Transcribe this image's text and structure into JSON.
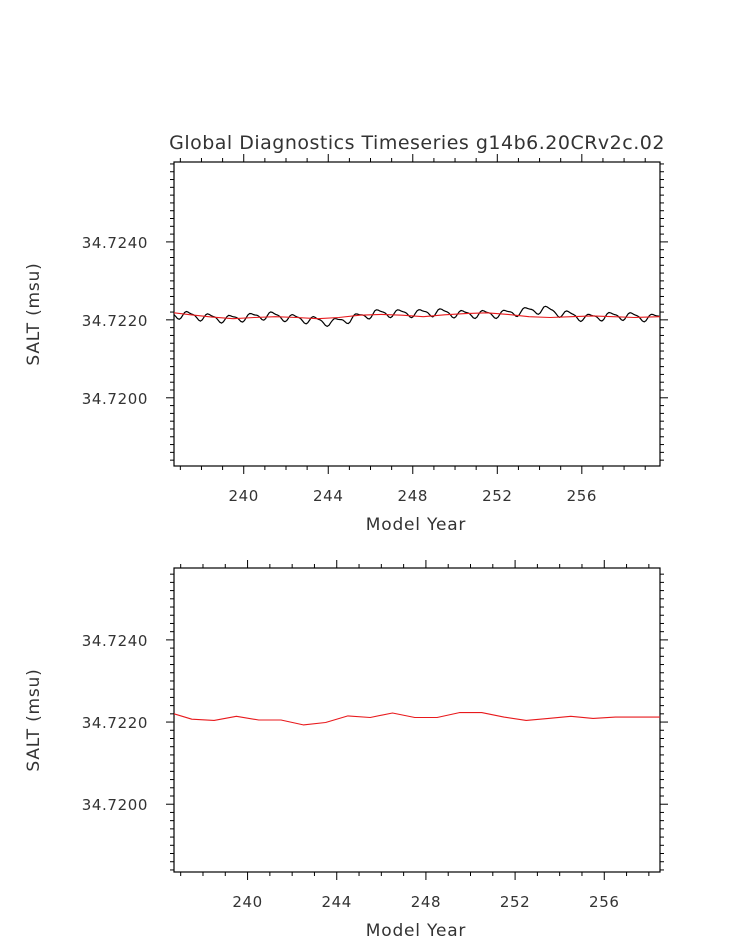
{
  "figure": {
    "title": "Global Diagnostics Timeseries g14b6.20CRv2c.02"
  },
  "chart_data": [
    {
      "type": "line",
      "title": "Global Diagnostics Timeseries g14b6.20CRv2c.02",
      "xlabel": "Model Year",
      "ylabel": "SALT (msu)",
      "xlim": [
        236.7,
        259.7
      ],
      "ylim": [
        34.71825,
        34.72605
      ],
      "x_ticks": [
        240,
        244,
        248,
        252,
        256
      ],
      "x_tick_labels": [
        "240",
        "244",
        "248",
        "252",
        "256"
      ],
      "y_ticks": [
        34.72,
        34.722,
        34.724
      ],
      "y_tick_labels": [
        "34.7200",
        "34.7220",
        "34.7240"
      ],
      "grid": false,
      "series": [
        {
          "color": "#000000",
          "style": "monthly",
          "x_range": [
            236.7,
            259.7
          ],
          "annual_cycle_amplitude": 9e-05,
          "base_values": [
            34.72213,
            34.72207,
            34.72202,
            34.72207,
            34.72212,
            34.72205,
            34.722,
            34.72193,
            34.72205,
            34.72217,
            34.72217,
            34.72217,
            34.7222,
            34.72215,
            34.72215,
            34.72215,
            34.72222,
            34.72227,
            34.72215,
            34.72205,
            34.7221,
            34.7221,
            34.72205,
            34.7221
          ]
        },
        {
          "color": "#e8191c",
          "style": "annual",
          "x": [
            236.7,
            237.5,
            238.5,
            239.5,
            240.5,
            241.5,
            242.5,
            243.5,
            244.5,
            245.5,
            246.5,
            247.5,
            248.5,
            249.5,
            250.5,
            251.5,
            252.5,
            253.5,
            254.5,
            255.5,
            256.5,
            257.5,
            258.5,
            259.7
          ],
          "y": [
            34.72218,
            34.72213,
            34.72207,
            34.72203,
            34.72206,
            34.72208,
            34.72206,
            34.72203,
            34.72206,
            34.72212,
            34.72214,
            34.72212,
            34.72208,
            34.72213,
            34.72216,
            34.72218,
            34.72214,
            34.72208,
            34.72206,
            34.72208,
            34.7221,
            34.72208,
            34.72206,
            34.72208
          ]
        }
      ]
    },
    {
      "type": "line",
      "xlabel": "Model Year",
      "ylabel": "SALT (msu)",
      "xlim": [
        236.7,
        258.5
      ],
      "ylim": [
        34.71835,
        34.72575
      ],
      "x_ticks": [
        240,
        244,
        248,
        252,
        256
      ],
      "x_tick_labels": [
        "240",
        "244",
        "248",
        "252",
        "256"
      ],
      "y_ticks": [
        34.72,
        34.722,
        34.724
      ],
      "y_tick_labels": [
        "34.7200",
        "34.7220",
        "34.7240"
      ],
      "grid": false,
      "series": [
        {
          "color": "#e8191c",
          "style": "annual",
          "x": [
            236.7,
            237.5,
            238.5,
            239.5,
            240.5,
            241.5,
            242.5,
            243.5,
            244.5,
            245.5,
            246.5,
            247.5,
            248.5,
            249.5,
            250.5,
            251.5,
            252.5,
            253.5,
            254.5,
            255.5,
            256.5,
            257.5,
            258.5
          ],
          "y": [
            34.7222,
            34.72207,
            34.72204,
            34.72214,
            34.72205,
            34.72205,
            34.72193,
            34.72199,
            34.72215,
            34.72211,
            34.72222,
            34.72211,
            34.72211,
            34.72223,
            34.72223,
            34.72212,
            34.72204,
            34.72209,
            34.72214,
            34.72209,
            34.72212,
            34.72212,
            34.72212
          ]
        }
      ]
    }
  ]
}
